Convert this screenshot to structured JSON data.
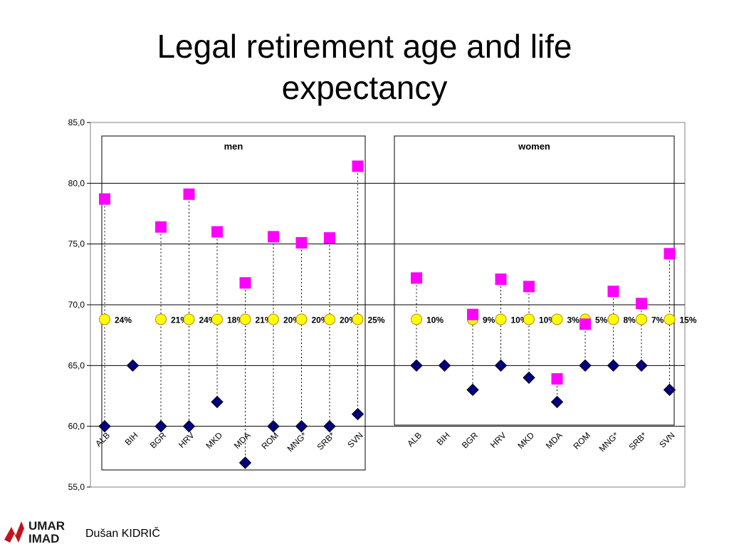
{
  "slide": {
    "title_line1": "Legal retirement age and life",
    "title_line2": "expectancy",
    "author": "Dušan KIDRIČ",
    "logo": {
      "top": "UMAR",
      "bottom": "IMAD",
      "accent": "#c0141c"
    }
  },
  "chart_data": {
    "type": "scatter",
    "ylim": [
      55,
      85
    ],
    "yticks": [
      "55,0",
      "60,0",
      "65,0",
      "70,0",
      "75,0",
      "80,0",
      "85,0"
    ],
    "ytick_values": [
      55,
      60,
      65,
      70,
      75,
      80,
      85
    ],
    "grid": true,
    "colors": {
      "life_expectancy": "#ff00ff",
      "retirement_age": "#000080",
      "marker": "#ffff00"
    },
    "panels": [
      {
        "name": "men",
        "categories": [
          "ALB",
          "BIH",
          "BGR",
          "HRV",
          "MKD",
          "MDA",
          "ROM",
          "MNG*",
          "SRB*",
          "SVN"
        ],
        "life_expectancy": [
          78.7,
          null,
          76.4,
          79.1,
          76.0,
          71.8,
          75.6,
          75.1,
          75.5,
          81.4
        ],
        "retirement_age": [
          60,
          65,
          60,
          60,
          62,
          57,
          60,
          60,
          60,
          61
        ],
        "marker_value": 68.8,
        "marker_present": [
          true,
          false,
          true,
          true,
          true,
          true,
          true,
          true,
          true,
          true
        ],
        "percent_labels": [
          "24%",
          "",
          "21%",
          "24%",
          "18%",
          "21%",
          "20%",
          "20%",
          "20%",
          "25%"
        ]
      },
      {
        "name": "women",
        "categories": [
          "ALB",
          "BIH",
          "BGR",
          "HRV",
          "MKD",
          "MDA",
          "ROM",
          "MNG*",
          "SRB*",
          "SVN"
        ],
        "life_expectancy": [
          72.2,
          null,
          69.2,
          72.1,
          71.5,
          63.9,
          68.4,
          71.1,
          70.1,
          74.2
        ],
        "retirement_age": [
          65,
          65,
          63,
          65,
          64,
          62,
          65,
          65,
          65,
          63
        ],
        "marker_value": 68.8,
        "marker_present": [
          true,
          false,
          true,
          true,
          true,
          true,
          true,
          true,
          true,
          true
        ],
        "percent_labels": [
          "10%",
          "",
          "9%",
          "10%",
          "10%",
          "3%",
          "5%",
          "8%",
          "7%",
          "15%"
        ]
      }
    ]
  }
}
